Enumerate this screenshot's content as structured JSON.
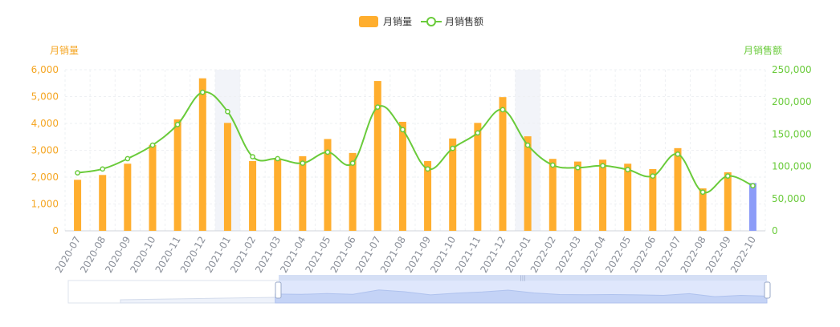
{
  "legend": {
    "bar_label": "月销量",
    "line_label": "月销售额"
  },
  "axes": {
    "left_title": "月销量",
    "right_title": "月销售额",
    "left_ticks": [
      "0",
      "1,000",
      "2,000",
      "3,000",
      "4,000",
      "5,000",
      "6,000"
    ],
    "right_ticks": [
      "0",
      "50,000",
      "100,000",
      "150,000",
      "200,000",
      "250,000"
    ]
  },
  "colors": {
    "bar": "#FFAE2E",
    "bar_highlight": "#8C9CF8",
    "line": "#6ACB3B",
    "left_axis_text": "#F5A623",
    "right_axis_text": "#6ACB3B",
    "category_text": "#8A8F99",
    "grid": "#EEF0F3",
    "band": "#F2F4F9",
    "slider_fill": "#D9E3FB",
    "slider_border": "#B9C6EE"
  },
  "chart_data": {
    "type": "bar",
    "categories": [
      "2020-07",
      "2020-08",
      "2020-09",
      "2020-10",
      "2020-11",
      "2020-12",
      "2021-01",
      "2021-02",
      "2021-03",
      "2021-04",
      "2021-05",
      "2021-06",
      "2021-07",
      "2021-08",
      "2021-09",
      "2021-10",
      "2021-11",
      "2021-12",
      "2022-01",
      "2022-02",
      "2022-03",
      "2022-04",
      "2022-05",
      "2022-06",
      "2022-07",
      "2022-08",
      "2022-09",
      "2022-10"
    ],
    "series": [
      {
        "name": "月销量",
        "type": "bar",
        "axis": "left",
        "values": [
          1900,
          2080,
          2500,
          3200,
          4150,
          5680,
          4020,
          2600,
          2700,
          2780,
          3420,
          2900,
          5580,
          4060,
          2600,
          3440,
          4020,
          4980,
          3520,
          2680,
          2580,
          2650,
          2500,
          2300,
          3080,
          1580,
          2180,
          1780
        ]
      },
      {
        "name": "月销售额",
        "type": "line",
        "smooth": true,
        "axis": "right",
        "values": [
          90000,
          96000,
          112000,
          133000,
          165000,
          215000,
          185000,
          115000,
          112000,
          105000,
          122000,
          105000,
          192000,
          157000,
          96000,
          128000,
          152000,
          188000,
          133000,
          102000,
          98000,
          101000,
          95000,
          85000,
          119000,
          60000,
          85000,
          70000
        ]
      }
    ],
    "ylim_left": [
      0,
      6000
    ],
    "ylim_right": [
      0,
      250000
    ],
    "xlabel": "",
    "ylabel_left": "月销量",
    "ylabel_right": "月销售额",
    "grid": true,
    "legend": "top-center",
    "highlighted_category": "2022-10",
    "axis_pointer_bands": [
      "2021-01",
      "2022-01"
    ]
  }
}
